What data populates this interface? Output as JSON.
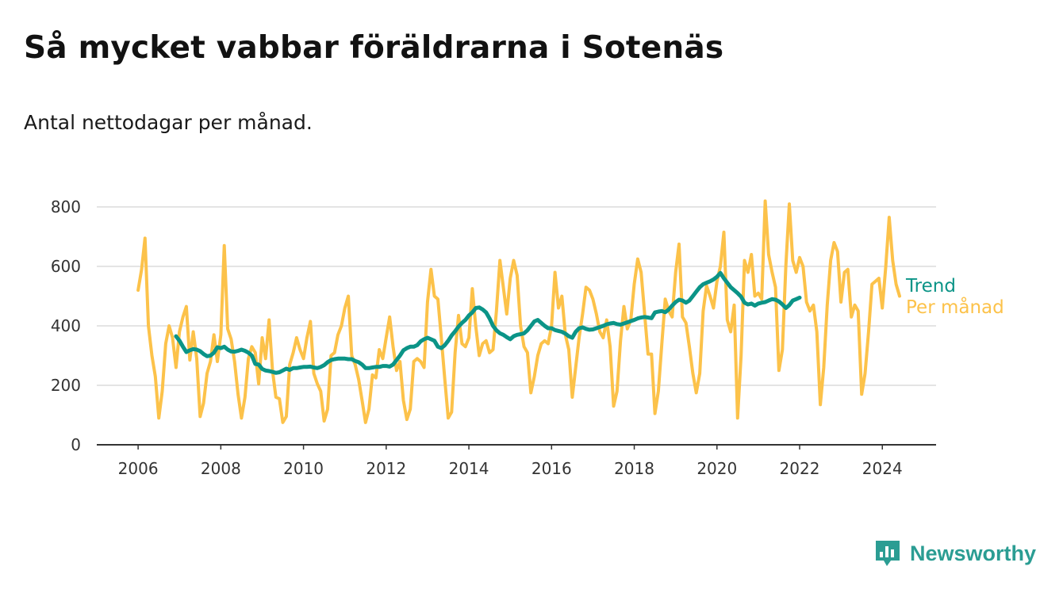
{
  "header": {
    "title": "Så mycket vabbar föräldrarna i Sotenäs",
    "subtitle": "Antal nettodagar per månad."
  },
  "brand": {
    "name": "Newsworthy",
    "icon": "bar-chart-bubble-icon",
    "color": "#2b9d93"
  },
  "chart_data": {
    "type": "line",
    "xlim": [
      2005.0,
      2025.3
    ],
    "ylim": [
      0,
      800
    ],
    "xticks": [
      2006,
      2008,
      2010,
      2012,
      2014,
      2016,
      2018,
      2020,
      2022,
      2024
    ],
    "yticks": [
      0,
      200,
      400,
      600,
      800
    ],
    "grid": true,
    "legend": "right",
    "series": [
      {
        "name": "Per månad",
        "color": "#fcc24a",
        "x_start": 2006.0,
        "step": 0.083333,
        "values": [
          520,
          590,
          695,
          400,
          300,
          230,
          90,
          180,
          340,
          400,
          360,
          260,
          380,
          430,
          465,
          285,
          380,
          290,
          95,
          140,
          240,
          280,
          370,
          280,
          370,
          670,
          390,
          355,
          280,
          170,
          90,
          160,
          290,
          330,
          310,
          205,
          360,
          290,
          420,
          250,
          160,
          155,
          75,
          95,
          270,
          310,
          360,
          320,
          290,
          360,
          415,
          240,
          205,
          180,
          80,
          120,
          300,
          310,
          370,
          400,
          460,
          500,
          300,
          270,
          220,
          150,
          75,
          120,
          235,
          225,
          320,
          290,
          360,
          430,
          330,
          250,
          280,
          150,
          85,
          120,
          280,
          290,
          280,
          260,
          480,
          590,
          500,
          490,
          360,
          220,
          90,
          110,
          310,
          435,
          340,
          330,
          360,
          525,
          400,
          300,
          340,
          350,
          310,
          320,
          450,
          620,
          530,
          440,
          560,
          620,
          570,
          400,
          330,
          310,
          175,
          230,
          300,
          340,
          350,
          340,
          400,
          580,
          460,
          500,
          370,
          320,
          160,
          260,
          360,
          440,
          530,
          520,
          490,
          440,
          380,
          360,
          420,
          330,
          130,
          180,
          350,
          465,
          390,
          420,
          540,
          625,
          580,
          440,
          305,
          305,
          105,
          180,
          340,
          490,
          450,
          430,
          580,
          675,
          430,
          410,
          330,
          240,
          175,
          240,
          450,
          535,
          500,
          460,
          550,
          600,
          715,
          420,
          380,
          470,
          90,
          300,
          620,
          580,
          640,
          500,
          510,
          490,
          820,
          640,
          580,
          530,
          250,
          320,
          600,
          810,
          620,
          580,
          630,
          600,
          480,
          450,
          470,
          380,
          135,
          260,
          470,
          620,
          680,
          650,
          480,
          580,
          590,
          430,
          470,
          450,
          170,
          240,
          380,
          540,
          550,
          560,
          460,
          600,
          765,
          620,
          540,
          500
        ]
      },
      {
        "name": "Trend",
        "color": "#0b9487",
        "x_start": 2006.917,
        "step": 0.083333,
        "values": [
          365,
          350,
          330,
          312,
          318,
          322,
          320,
          315,
          305,
          298,
          300,
          310,
          328,
          325,
          330,
          320,
          314,
          313,
          316,
          320,
          316,
          310,
          300,
          272,
          270,
          255,
          250,
          248,
          245,
          242,
          244,
          250,
          256,
          252,
          258,
          258,
          260,
          262,
          262,
          263,
          260,
          258,
          262,
          268,
          278,
          285,
          288,
          290,
          290,
          290,
          288,
          288,
          282,
          278,
          270,
          258,
          258,
          260,
          262,
          262,
          265,
          265,
          263,
          270,
          285,
          300,
          318,
          325,
          330,
          330,
          335,
          348,
          355,
          360,
          355,
          350,
          330,
          325,
          335,
          350,
          368,
          382,
          398,
          410,
          420,
          435,
          445,
          460,
          462,
          455,
          445,
          425,
          400,
          385,
          375,
          370,
          362,
          355,
          365,
          370,
          372,
          375,
          385,
          400,
          415,
          420,
          410,
          400,
          392,
          392,
          386,
          383,
          380,
          374,
          365,
          360,
          380,
          392,
          395,
          390,
          387,
          388,
          392,
          396,
          400,
          405,
          408,
          410,
          406,
          404,
          408,
          412,
          416,
          420,
          425,
          428,
          430,
          428,
          426,
          445,
          448,
          450,
          446,
          455,
          468,
          480,
          488,
          485,
          478,
          485,
          500,
          515,
          530,
          540,
          545,
          550,
          556,
          565,
          578,
          560,
          545,
          530,
          520,
          510,
          498,
          478,
          472,
          475,
          468,
          475,
          478,
          480,
          485,
          490,
          488,
          482,
          472,
          460,
          470,
          485,
          490,
          495
        ]
      }
    ]
  }
}
